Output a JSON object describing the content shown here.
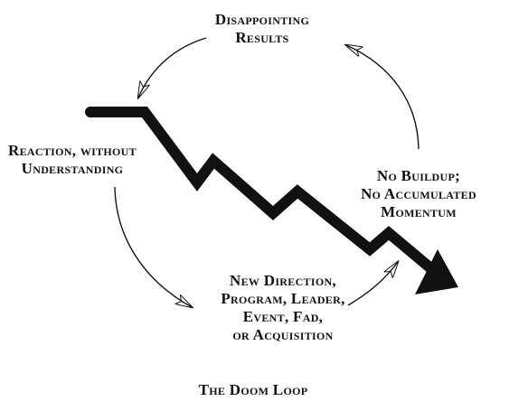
{
  "diagram": {
    "title": "The Doom Loop",
    "nodes": {
      "disappointing_results": [
        "Disappointing",
        "Results"
      ],
      "reaction": [
        "Reaction, without",
        "Understanding"
      ],
      "no_buildup": [
        "No Buildup;",
        "No Accumulated",
        "Momentum"
      ],
      "new_direction": [
        "New Direction,",
        "Program, Leader,",
        "Event, Fad,",
        "or Acquisition"
      ]
    },
    "cycle_order": [
      "disappointing_results",
      "reaction",
      "new_direction",
      "no_buildup"
    ],
    "colors": {
      "ink": "#111111",
      "background": "#ffffff"
    }
  }
}
